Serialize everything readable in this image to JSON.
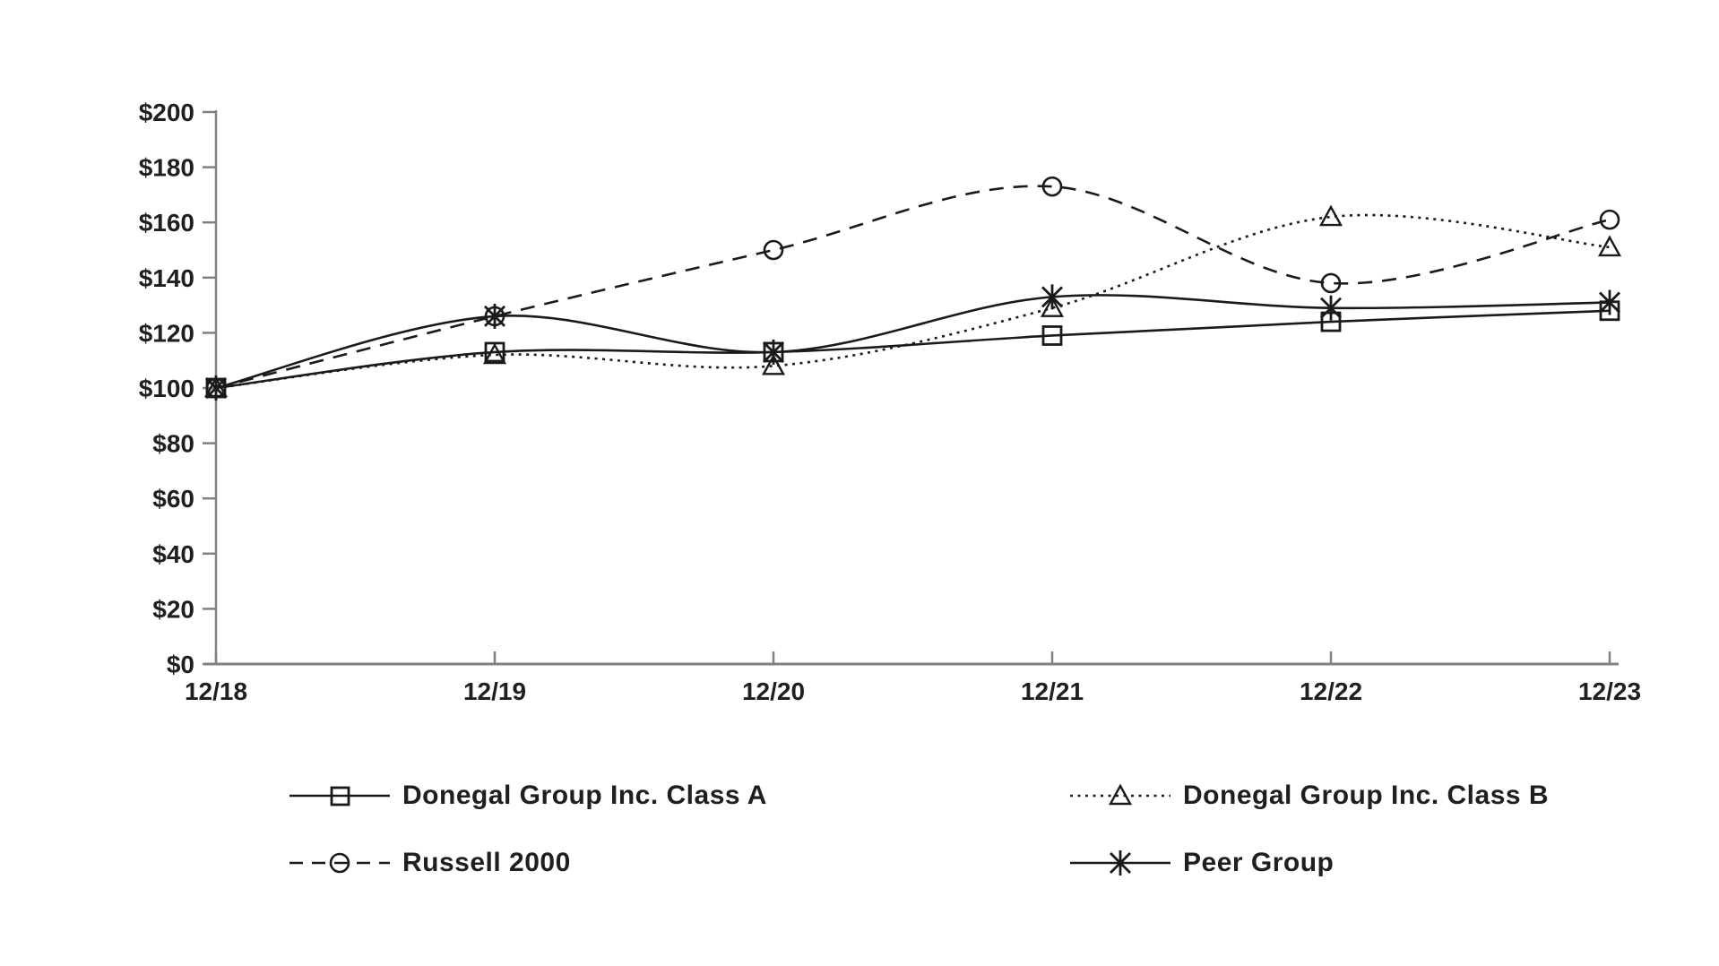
{
  "chart_data": {
    "type": "line",
    "title": "",
    "xlabel": "",
    "ylabel": "",
    "categories": [
      "12/18",
      "12/19",
      "12/20",
      "12/21",
      "12/22",
      "12/23"
    ],
    "series": [
      {
        "name": "Donegal Group Inc. Class A",
        "line_style": "solid",
        "marker": "square",
        "values": [
          100,
          113,
          113,
          119,
          124,
          128
        ]
      },
      {
        "name": "Donegal Group Inc. Class B",
        "line_style": "dotted",
        "marker": "triangle",
        "values": [
          100,
          112,
          108,
          129,
          162,
          151
        ]
      },
      {
        "name": "Russell 2000",
        "line_style": "dashed",
        "marker": "circle",
        "values": [
          100,
          126,
          150,
          173,
          138,
          161
        ]
      },
      {
        "name": "Peer Group",
        "line_style": "solid",
        "marker": "asterisk",
        "values": [
          100,
          126,
          113,
          133,
          129,
          131
        ]
      }
    ],
    "ylim": [
      0,
      200
    ],
    "y_tick_step": 20,
    "y_tick_labels": [
      "$0",
      "$20",
      "$40",
      "$60",
      "$80",
      "$100",
      "$120",
      "$140",
      "$160",
      "$180",
      "$200"
    ],
    "grid": "off",
    "legend_position": "bottom-two-column",
    "colors": {
      "ink": "#1a1a1a",
      "axis": "#808080",
      "background": "#ffffff"
    }
  }
}
